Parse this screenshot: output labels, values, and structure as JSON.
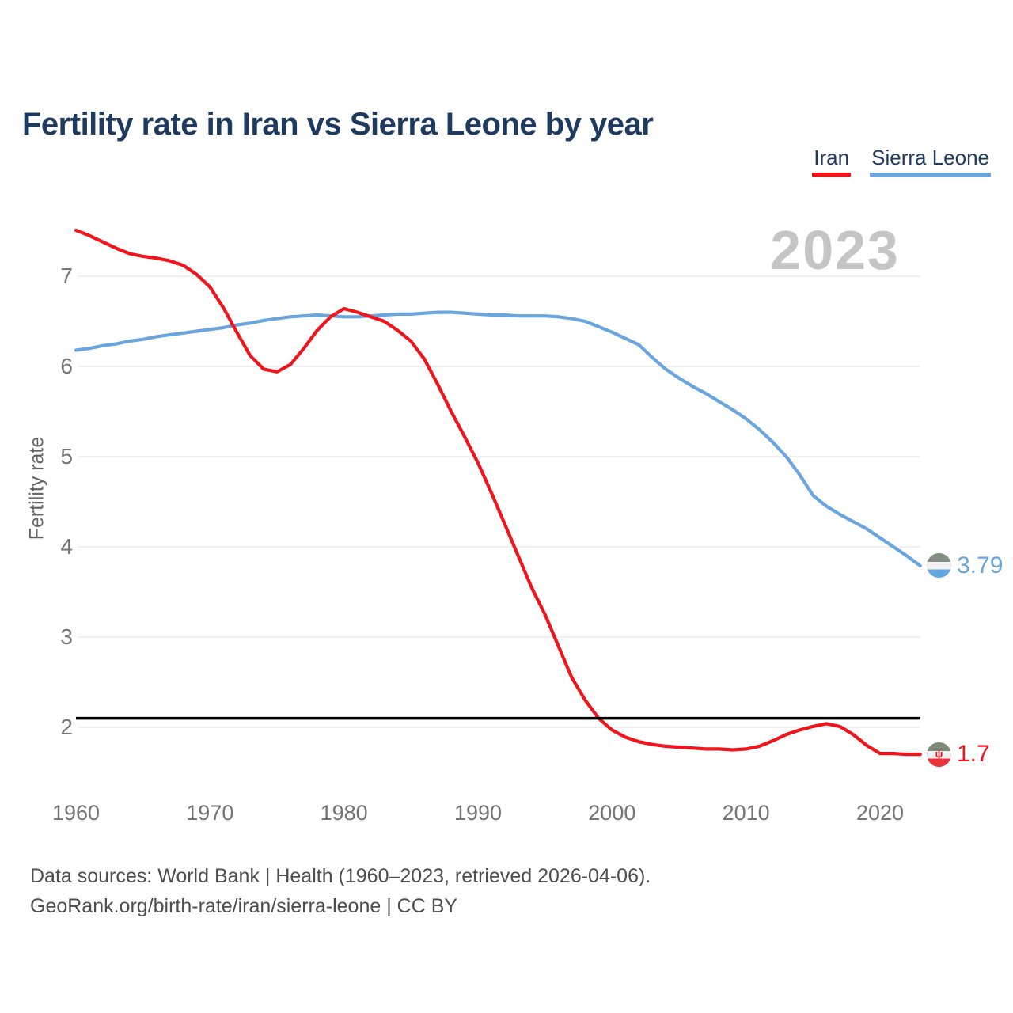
{
  "page": {
    "title": "Fertility rate in Iran vs Sierra Leone by year",
    "watermark_year": "2023",
    "footer_line1": "Data sources: World Bank | Health (1960–2023, retrieved 2026-04-06).",
    "footer_line2": "GeoRank.org/birth-rate/iran/sierra-leone | CC BY"
  },
  "colors": {
    "title_navy": "#1e3a5f",
    "iran_red": "#f0151c",
    "sierra_leone_blue": "#6aa5de",
    "gridline": "#ebebeb",
    "reference_black": "#000000",
    "tick_gray": "#757575",
    "watermark_gray": "#c5c5c5"
  },
  "chart_data": {
    "type": "line",
    "title": "Fertility rate in Iran vs Sierra Leone by year",
    "xlabel": "",
    "ylabel": "Fertility rate",
    "x_ticks": [
      1960,
      1970,
      1980,
      1990,
      2000,
      2010,
      2020
    ],
    "y_ticks": [
      7,
      6,
      5,
      4,
      3,
      2
    ],
    "xlim": [
      1960,
      2023
    ],
    "ylim": [
      1.45,
      7.6
    ],
    "grid": "horizontal",
    "legend_position": "top-right",
    "current_year_label": "2023",
    "reference_line": {
      "value": 2.1,
      "color": "#000000",
      "name": "replacement-rate"
    },
    "years": [
      1960,
      1961,
      1962,
      1963,
      1964,
      1965,
      1966,
      1967,
      1968,
      1969,
      1970,
      1971,
      1972,
      1973,
      1974,
      1975,
      1976,
      1977,
      1978,
      1979,
      1980,
      1981,
      1982,
      1983,
      1984,
      1985,
      1986,
      1987,
      1988,
      1989,
      1990,
      1991,
      1992,
      1993,
      1994,
      1995,
      1996,
      1997,
      1998,
      1999,
      2000,
      2001,
      2002,
      2003,
      2004,
      2005,
      2006,
      2007,
      2008,
      2009,
      2010,
      2011,
      2012,
      2013,
      2014,
      2015,
      2016,
      2017,
      2018,
      2019,
      2020,
      2021,
      2022,
      2023
    ],
    "series": [
      {
        "name": "Iran",
        "color": "#f0151c",
        "end_label": "1.7",
        "flag_colors": [
          "#7f8a78",
          "#f2f2f2",
          "#e8343a"
        ],
        "flag_emblem": "ψ",
        "values": [
          7.51,
          7.45,
          7.38,
          7.31,
          7.25,
          7.22,
          7.2,
          7.17,
          7.12,
          7.02,
          6.88,
          6.65,
          6.38,
          6.12,
          5.97,
          5.94,
          6.02,
          6.2,
          6.4,
          6.55,
          6.64,
          6.6,
          6.55,
          6.5,
          6.4,
          6.28,
          6.08,
          5.8,
          5.5,
          5.22,
          4.93,
          4.6,
          4.25,
          3.9,
          3.55,
          3.25,
          2.9,
          2.55,
          2.3,
          2.1,
          1.97,
          1.89,
          1.84,
          1.81,
          1.79,
          1.78,
          1.77,
          1.76,
          1.76,
          1.75,
          1.76,
          1.79,
          1.85,
          1.92,
          1.97,
          2.01,
          2.04,
          2.01,
          1.92,
          1.8,
          1.71,
          1.71,
          1.7,
          1.7
        ]
      },
      {
        "name": "Sierra Leone",
        "color": "#6aa5de",
        "end_label": "3.79",
        "flag_colors": [
          "#859084",
          "#f0f0f0",
          "#64a7e0"
        ],
        "flag_emblem": "",
        "values": [
          6.18,
          6.2,
          6.23,
          6.25,
          6.28,
          6.3,
          6.33,
          6.35,
          6.37,
          6.39,
          6.41,
          6.43,
          6.46,
          6.48,
          6.51,
          6.53,
          6.55,
          6.56,
          6.57,
          6.56,
          6.55,
          6.55,
          6.56,
          6.57,
          6.58,
          6.58,
          6.59,
          6.6,
          6.6,
          6.59,
          6.58,
          6.57,
          6.57,
          6.56,
          6.56,
          6.56,
          6.55,
          6.53,
          6.5,
          6.44,
          6.38,
          6.31,
          6.24,
          6.1,
          5.97,
          5.87,
          5.78,
          5.7,
          5.61,
          5.52,
          5.42,
          5.3,
          5.16,
          5.0,
          4.8,
          4.57,
          4.45,
          4.36,
          4.28,
          4.2,
          4.1,
          4.0,
          3.9,
          3.79
        ]
      }
    ]
  }
}
